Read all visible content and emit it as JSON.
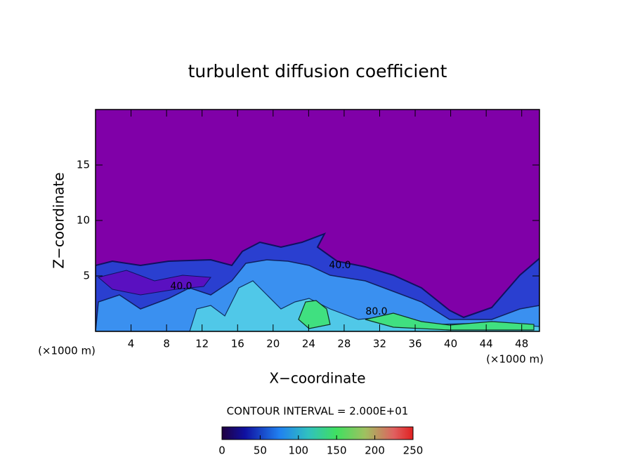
{
  "chart_data": {
    "type": "contour",
    "title": "turbulent diffusion coefficient",
    "xlabel": "X−coordinate",
    "ylabel": "Z−coordinate",
    "xunit": "(×1000 m)",
    "yunit": "(×1000 m)",
    "xlim": [
      0,
      50
    ],
    "xticks": [
      4,
      8,
      12,
      16,
      20,
      24,
      28,
      32,
      36,
      40,
      44,
      48
    ],
    "ylim": [
      0,
      20
    ],
    "yticks": [
      5,
      10,
      15
    ],
    "background_color": "#8000a8",
    "contour_labels": [
      "40.0",
      "40.0",
      "80.0"
    ],
    "colorbar": {
      "label": "CONTOUR INTERVAL = 2.000E+01",
      "lim": [
        0,
        250
      ],
      "ticks": [
        0,
        50,
        100,
        150,
        200,
        250
      ]
    }
  }
}
